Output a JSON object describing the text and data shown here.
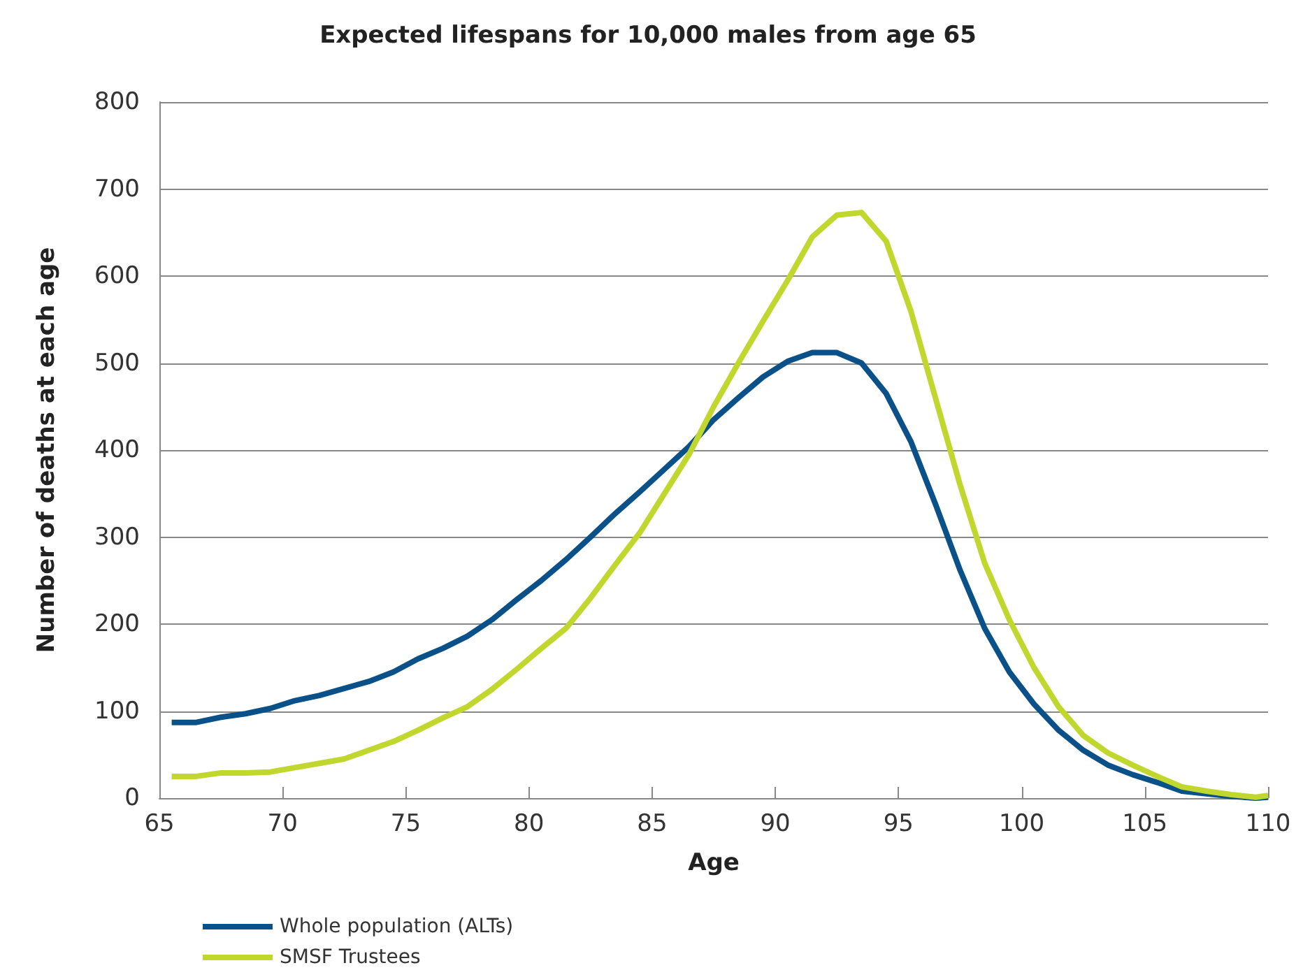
{
  "chart_data": {
    "type": "line",
    "title": "Expected lifespans for 10,000 males from age 65",
    "xlabel": "Age",
    "ylabel": "Number of deaths at each age",
    "x": [
      65.5,
      66.5,
      67.5,
      68.5,
      69.5,
      70.5,
      71.5,
      72.5,
      73.5,
      74.5,
      75.5,
      76.5,
      77.5,
      78.5,
      79.5,
      80.5,
      81.5,
      82.5,
      83.5,
      84.5,
      85.5,
      86.5,
      87.5,
      88.5,
      89.5,
      90.5,
      91.5,
      92.5,
      93.5,
      94.5,
      95.5,
      96.5,
      97.5,
      98.5,
      99.5,
      100.5,
      101.5,
      102.5,
      103.5,
      104.5,
      105.5,
      106.5,
      107.5,
      108.5,
      109.5,
      110
    ],
    "series": [
      {
        "name": "Whole population (ALTs)",
        "color": "#0b5189",
        "values": [
          87,
          87,
          93,
          97,
          103,
          112,
          118,
          126,
          134,
          145,
          160,
          172,
          186,
          205,
          228,
          250,
          274,
          300,
          327,
          352,
          378,
          404,
          435,
          460,
          484,
          502,
          512,
          512,
          500,
          465,
          410,
          338,
          262,
          195,
          145,
          108,
          78,
          55,
          38,
          27,
          18,
          8,
          5,
          2,
          0,
          1
        ]
      },
      {
        "name": "SMSF Trustees",
        "color": "#c1d72e",
        "values": [
          25,
          25,
          29,
          29,
          30,
          35,
          40,
          45,
          55,
          65,
          78,
          92,
          105,
          125,
          148,
          172,
          195,
          230,
          268,
          305,
          350,
          395,
          450,
          500,
          548,
          595,
          645,
          670,
          673,
          640,
          560,
          460,
          360,
          270,
          205,
          150,
          105,
          72,
          52,
          38,
          25,
          13,
          8,
          4,
          1,
          3
        ]
      }
    ],
    "xlim": [
      65,
      110
    ],
    "xticks": [
      65,
      70,
      75,
      80,
      85,
      90,
      95,
      100,
      105,
      110
    ],
    "ylim": [
      0,
      800
    ],
    "yticks": [
      0,
      100,
      200,
      300,
      400,
      500,
      600,
      700,
      800
    ],
    "grid": "y",
    "legend": "bottom left",
    "marker": "none",
    "line_style": "solid"
  }
}
